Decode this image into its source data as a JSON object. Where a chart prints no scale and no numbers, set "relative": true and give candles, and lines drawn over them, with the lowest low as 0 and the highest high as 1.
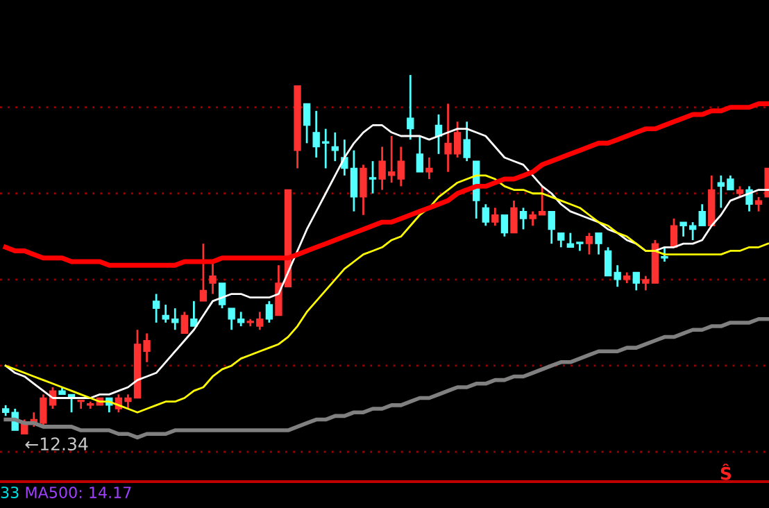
{
  "chart_data": {
    "type": "candlestick",
    "relative": true,
    "ref_lines": [
      {
        "axis": "y",
        "value": 0.91,
        "color": "#a00000",
        "line_style": "dotted"
      },
      {
        "axis": "y",
        "value": 0.67,
        "color": "#a00000",
        "line_style": "dotted"
      },
      {
        "axis": "y",
        "value": 0.43,
        "color": "#a00000",
        "line_style": "dotted"
      },
      {
        "axis": "y",
        "value": 0.19,
        "color": "#a00000",
        "line_style": "dotted"
      },
      {
        "axis": "y",
        "value": -0.05,
        "color": "#a00000",
        "line_style": "dotted"
      }
    ],
    "categories": [
      null,
      null,
      null,
      null,
      null,
      null,
      null,
      null,
      null,
      null,
      null,
      null,
      null,
      null,
      null,
      null,
      null,
      null,
      null,
      null,
      null,
      null,
      null,
      null,
      null,
      null,
      null,
      null,
      null,
      null,
      null,
      null,
      null,
      null,
      null,
      null,
      null,
      null,
      null,
      null,
      null,
      null,
      null,
      null,
      null,
      null,
      null,
      null,
      null,
      null,
      null,
      null,
      null,
      null,
      null,
      null,
      null,
      null,
      null,
      null,
      null,
      null,
      null,
      null,
      null,
      null,
      null,
      null,
      null,
      null,
      null,
      null,
      null,
      null,
      null,
      null,
      null,
      null,
      null,
      null,
      null,
      null
    ],
    "ohlc": [
      [
        0.07,
        0.08,
        0.05,
        0.06
      ],
      [
        0.06,
        0.07,
        0.01,
        0.01
      ],
      [
        0.0,
        0.04,
        0.0,
        0.03
      ],
      [
        0.03,
        0.06,
        0.02,
        0.04
      ],
      [
        0.03,
        0.11,
        0.02,
        0.1
      ],
      [
        0.08,
        0.13,
        0.07,
        0.12
      ],
      [
        0.12,
        0.13,
        0.11,
        0.11
      ],
      [
        0.11,
        0.11,
        0.06,
        0.1
      ],
      [
        0.09,
        0.09,
        0.07,
        0.09
      ],
      [
        0.08,
        0.09,
        0.07,
        0.08
      ],
      [
        0.08,
        0.1,
        0.08,
        0.1
      ],
      [
        0.1,
        0.1,
        0.06,
        0.08
      ],
      [
        0.07,
        0.11,
        0.06,
        0.1
      ],
      [
        0.09,
        0.11,
        0.07,
        0.1
      ],
      [
        0.1,
        0.29,
        0.1,
        0.25
      ],
      [
        0.23,
        0.28,
        0.2,
        0.26
      ],
      [
        0.37,
        0.39,
        0.31,
        0.35
      ],
      [
        0.33,
        0.36,
        0.31,
        0.32
      ],
      [
        0.32,
        0.35,
        0.29,
        0.31
      ],
      [
        0.28,
        0.34,
        0.28,
        0.33
      ],
      [
        0.32,
        0.37,
        0.3,
        0.3
      ],
      [
        0.37,
        0.53,
        0.37,
        0.4
      ],
      [
        0.42,
        0.48,
        0.39,
        0.44
      ],
      [
        0.42,
        0.42,
        0.35,
        0.36
      ],
      [
        0.35,
        0.35,
        0.29,
        0.32
      ],
      [
        0.32,
        0.34,
        0.3,
        0.31
      ],
      [
        0.31,
        0.32,
        0.3,
        0.31
      ],
      [
        0.3,
        0.34,
        0.29,
        0.32
      ],
      [
        0.36,
        0.37,
        0.31,
        0.32
      ],
      [
        0.33,
        0.47,
        0.33,
        0.42
      ],
      [
        0.41,
        0.68,
        0.41,
        0.68
      ],
      [
        0.79,
        0.97,
        0.74,
        0.97
      ],
      [
        0.92,
        0.92,
        0.81,
        0.86
      ],
      [
        0.84,
        0.9,
        0.77,
        0.8
      ],
      [
        0.81,
        0.85,
        0.74,
        0.81
      ],
      [
        0.8,
        0.84,
        0.76,
        0.79
      ],
      [
        0.77,
        0.82,
        0.72,
        0.74
      ],
      [
        0.74,
        0.79,
        0.62,
        0.66
      ],
      [
        0.66,
        0.75,
        0.61,
        0.74
      ],
      [
        0.71,
        0.76,
        0.67,
        0.71
      ],
      [
        0.71,
        0.8,
        0.68,
        0.76
      ],
      [
        0.72,
        0.83,
        0.7,
        0.73
      ],
      [
        0.71,
        0.8,
        0.69,
        0.76
      ],
      [
        0.88,
        1.0,
        0.82,
        0.85
      ],
      [
        0.78,
        0.83,
        0.73,
        0.73
      ],
      [
        0.73,
        0.77,
        0.71,
        0.74
      ],
      [
        0.86,
        0.89,
        0.78,
        0.83
      ],
      [
        0.78,
        0.92,
        0.73,
        0.81
      ],
      [
        0.78,
        0.87,
        0.77,
        0.84
      ],
      [
        0.82,
        0.87,
        0.76,
        0.77
      ],
      [
        0.76,
        0.76,
        0.6,
        0.65
      ],
      [
        0.63,
        0.64,
        0.58,
        0.59
      ],
      [
        0.59,
        0.63,
        0.58,
        0.61
      ],
      [
        0.61,
        0.61,
        0.55,
        0.56
      ],
      [
        0.56,
        0.65,
        0.56,
        0.63
      ],
      [
        0.62,
        0.63,
        0.57,
        0.6
      ],
      [
        0.6,
        0.62,
        0.58,
        0.61
      ],
      [
        0.61,
        0.69,
        0.61,
        0.62
      ],
      [
        0.62,
        0.62,
        0.53,
        0.57
      ],
      [
        0.56,
        0.56,
        0.52,
        0.54
      ],
      [
        0.53,
        0.56,
        0.52,
        0.52
      ],
      [
        0.53,
        0.53,
        0.51,
        0.53
      ],
      [
        0.53,
        0.56,
        0.5,
        0.55
      ],
      [
        0.56,
        0.56,
        0.5,
        0.53
      ],
      [
        0.51,
        0.52,
        0.44,
        0.44
      ],
      [
        0.45,
        0.47,
        0.41,
        0.43
      ],
      [
        0.43,
        0.45,
        0.42,
        0.44
      ],
      [
        0.45,
        0.45,
        0.4,
        0.42
      ],
      [
        0.42,
        0.44,
        0.4,
        0.43
      ],
      [
        0.42,
        0.54,
        0.42,
        0.53
      ],
      [
        0.49,
        0.52,
        0.48,
        0.49
      ],
      [
        0.52,
        0.6,
        0.52,
        0.58
      ],
      [
        0.59,
        0.59,
        0.55,
        0.58
      ],
      [
        0.58,
        0.59,
        0.54,
        0.57
      ],
      [
        0.62,
        0.64,
        0.58,
        0.58
      ],
      [
        0.58,
        0.72,
        0.58,
        0.68
      ],
      [
        0.7,
        0.72,
        0.63,
        0.69
      ],
      [
        0.71,
        0.72,
        0.68,
        0.68
      ],
      [
        0.67,
        0.69,
        0.66,
        0.68
      ],
      [
        0.68,
        0.69,
        0.62,
        0.64
      ],
      [
        0.64,
        0.66,
        0.62,
        0.65
      ],
      [
        0.66,
        0.74,
        0.66,
        0.74
      ]
    ],
    "colors": [
      "#54ffff",
      "#54ffff",
      "#ff3232",
      "#ff3232",
      "#ff3232",
      "#ff3232",
      "#54ffff",
      "#54ffff",
      "#ff3232",
      "#ff3232",
      "#ff3232",
      "#54ffff",
      "#ff3232",
      "#ff3232",
      "#ff3232",
      "#ff3232",
      "#54ffff",
      "#54ffff",
      "#54ffff",
      "#ff3232",
      "#54ffff",
      "#ff3232",
      "#ff3232",
      "#54ffff",
      "#54ffff",
      "#54ffff",
      "#ff3232",
      "#ff3232",
      "#54ffff",
      "#ff3232",
      "#ff3232",
      "#ff3232",
      "#54ffff",
      "#54ffff",
      "#54ffff",
      "#54ffff",
      "#54ffff",
      "#54ffff",
      "#ff3232",
      "#54ffff",
      "#ff3232",
      "#ff3232",
      "#ff3232",
      "#54ffff",
      "#54ffff",
      "#ff3232",
      "#54ffff",
      "#ff3232",
      "#ff3232",
      "#54ffff",
      "#54ffff",
      "#54ffff",
      "#ff3232",
      "#54ffff",
      "#ff3232",
      "#54ffff",
      "#ff3232",
      "#ff3232",
      "#54ffff",
      "#54ffff",
      "#54ffff",
      "#54ffff",
      "#ff3232",
      "#54ffff",
      "#54ffff",
      "#54ffff",
      "#ff3232",
      "#54ffff",
      "#ff3232",
      "#ff3232",
      "#54ffff",
      "#ff3232",
      "#54ffff",
      "#54ffff",
      "#54ffff",
      "#ff3232",
      "#54ffff",
      "#54ffff",
      "#ff3232",
      "#54ffff",
      "#ff3232",
      "#ff3232"
    ],
    "series": [
      {
        "type": "line",
        "color": "#ffffff",
        "values": [
          0.19,
          0.17,
          0.16,
          0.14,
          0.12,
          0.1,
          0.1,
          0.1,
          0.1,
          0.1,
          0.11,
          0.11,
          0.12,
          0.13,
          0.15,
          0.16,
          0.17,
          0.2,
          0.23,
          0.26,
          0.29,
          0.33,
          0.37,
          0.38,
          0.39,
          0.39,
          0.38,
          0.38,
          0.38,
          0.39,
          0.45,
          0.51,
          0.57,
          0.62,
          0.67,
          0.72,
          0.77,
          0.81,
          0.84,
          0.86,
          0.86,
          0.84,
          0.83,
          0.83,
          0.83,
          0.82,
          0.83,
          0.84,
          0.85,
          0.85,
          0.84,
          0.83,
          0.8,
          0.77,
          0.76,
          0.75,
          0.72,
          0.69,
          0.67,
          0.64,
          0.62,
          0.61,
          0.6,
          0.59,
          0.57,
          0.56,
          0.54,
          0.53,
          0.51,
          0.51,
          0.52,
          0.52,
          0.53,
          0.53,
          0.54,
          0.58,
          0.61,
          0.65,
          0.66,
          0.67,
          0.68,
          0.68
        ]
      },
      {
        "type": "line",
        "color": "#ffff00",
        "values": [
          0.19,
          0.18,
          0.17,
          0.16,
          0.15,
          0.14,
          0.13,
          0.12,
          0.11,
          0.1,
          0.09,
          0.09,
          0.08,
          0.07,
          0.06,
          0.07,
          0.08,
          0.09,
          0.09,
          0.1,
          0.12,
          0.13,
          0.16,
          0.18,
          0.19,
          0.21,
          0.22,
          0.23,
          0.24,
          0.25,
          0.27,
          0.3,
          0.34,
          0.37,
          0.4,
          0.43,
          0.46,
          0.48,
          0.5,
          0.51,
          0.52,
          0.54,
          0.55,
          0.58,
          0.61,
          0.63,
          0.66,
          0.68,
          0.7,
          0.71,
          0.72,
          0.72,
          0.71,
          0.69,
          0.68,
          0.68,
          0.67,
          0.67,
          0.66,
          0.65,
          0.64,
          0.63,
          0.61,
          0.59,
          0.58,
          0.56,
          0.55,
          0.53,
          0.51,
          0.51,
          0.5,
          0.5,
          0.5,
          0.5,
          0.5,
          0.5,
          0.5,
          0.51,
          0.51,
          0.52,
          0.52,
          0.53
        ]
      },
      {
        "type": "line",
        "color": "#ff0000",
        "values": [
          0.52,
          0.51,
          0.51,
          0.5,
          0.49,
          0.49,
          0.49,
          0.48,
          0.48,
          0.48,
          0.48,
          0.47,
          0.47,
          0.47,
          0.47,
          0.47,
          0.47,
          0.47,
          0.47,
          0.48,
          0.48,
          0.48,
          0.48,
          0.49,
          0.49,
          0.49,
          0.49,
          0.49,
          0.49,
          0.49,
          0.49,
          0.5,
          0.51,
          0.52,
          0.53,
          0.54,
          0.55,
          0.56,
          0.57,
          0.58,
          0.59,
          0.59,
          0.6,
          0.61,
          0.62,
          0.63,
          0.64,
          0.65,
          0.67,
          0.68,
          0.69,
          0.69,
          0.7,
          0.71,
          0.71,
          0.72,
          0.73,
          0.75,
          0.76,
          0.77,
          0.78,
          0.79,
          0.8,
          0.81,
          0.81,
          0.82,
          0.83,
          0.84,
          0.85,
          0.85,
          0.86,
          0.87,
          0.88,
          0.89,
          0.89,
          0.9,
          0.9,
          0.91,
          0.91,
          0.91,
          0.92,
          0.92
        ]
      },
      {
        "type": "line",
        "color": "#808080",
        "values": [
          0.04,
          0.04,
          0.03,
          0.03,
          0.02,
          0.02,
          0.02,
          0.02,
          0.01,
          0.01,
          0.01,
          0.01,
          0.0,
          0.0,
          -0.01,
          0.0,
          0.0,
          0.0,
          0.01,
          0.01,
          0.01,
          0.01,
          0.01,
          0.01,
          0.01,
          0.01,
          0.01,
          0.01,
          0.01,
          0.01,
          0.01,
          0.02,
          0.03,
          0.04,
          0.04,
          0.05,
          0.05,
          0.06,
          0.06,
          0.07,
          0.07,
          0.08,
          0.08,
          0.09,
          0.1,
          0.1,
          0.11,
          0.12,
          0.13,
          0.13,
          0.14,
          0.14,
          0.15,
          0.15,
          0.16,
          0.16,
          0.17,
          0.18,
          0.19,
          0.2,
          0.2,
          0.21,
          0.22,
          0.23,
          0.23,
          0.23,
          0.24,
          0.24,
          0.25,
          0.26,
          0.27,
          0.27,
          0.28,
          0.29,
          0.29,
          0.3,
          0.3,
          0.31,
          0.31,
          0.31,
          0.32,
          0.32
        ]
      }
    ],
    "annotations": [
      {
        "text": "←12.34",
        "y": 0
      },
      "33",
      "MA500: 14.17",
      "Ŝ"
    ]
  }
}
